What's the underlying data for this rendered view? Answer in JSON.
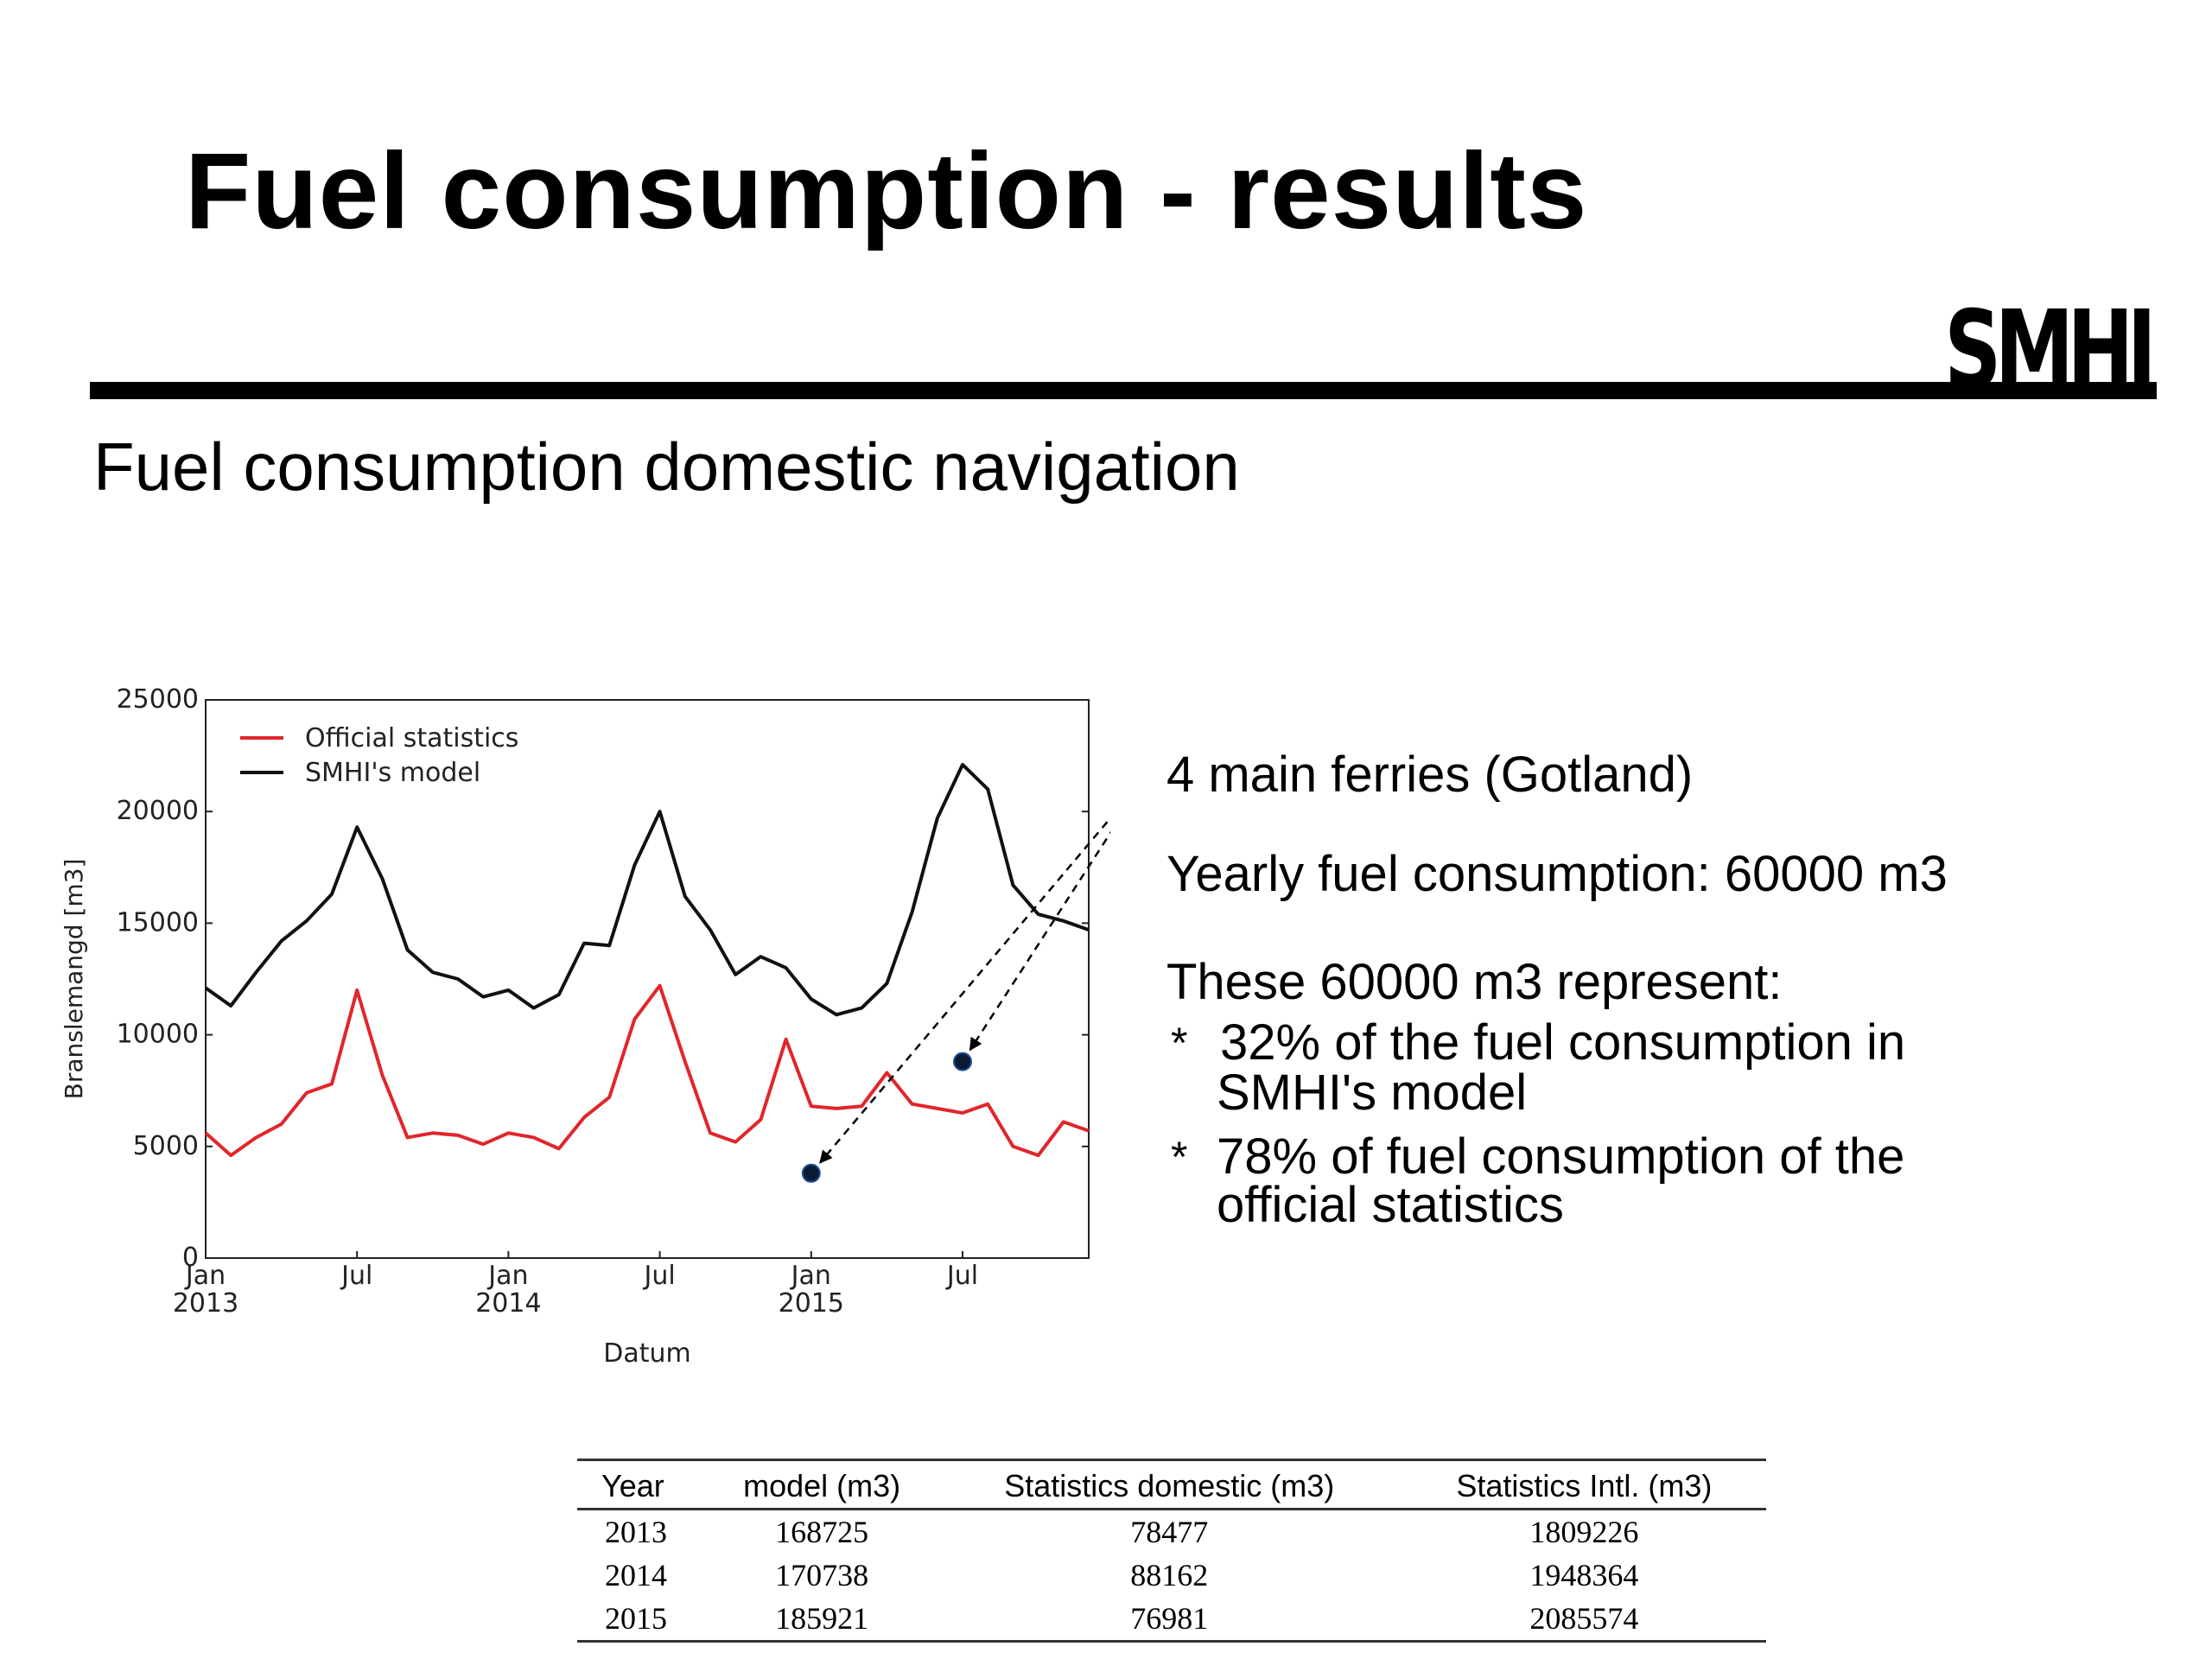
{
  "slide": {
    "title": "Fuel consumption - results",
    "logo": "SMHI",
    "subtitle": "Fuel consumption domestic navigation"
  },
  "annotations": {
    "ferries": "4 main ferries (Gotland)",
    "yearly": "Yearly fuel consumption: 60000 m3",
    "represent": "These 60000 m3 represent:",
    "bullet1_marker": "*",
    "bullet1_line1": "32% of the fuel consumption in",
    "bullet1_line2": "SMHI's model",
    "bullet2_marker": "*",
    "bullet2_line1": "78% of fuel consumption of the",
    "bullet2_line2": "official statistics"
  },
  "table": {
    "headers": [
      "Year",
      "model (m3)",
      "Statistics domestic (m3)",
      "Statistics Intl. (m3)"
    ],
    "rows": [
      [
        "2013",
        "168725",
        "78477",
        "1809226"
      ],
      [
        "2014",
        "170738",
        "88162",
        "1948364"
      ],
      [
        "2015",
        "185921",
        "76981",
        "2085574"
      ]
    ]
  },
  "chart_data": {
    "type": "line",
    "xlabel": "Datum",
    "ylabel": "Branslemangd [m3]",
    "ylim": [
      0,
      25000
    ],
    "yticks": [
      0,
      5000,
      10000,
      15000,
      20000,
      25000
    ],
    "xlim": [
      "2013-01",
      "2015-12"
    ],
    "xticks": [
      {
        "x": "2013-01",
        "line1": "Jan",
        "line2": "2013"
      },
      {
        "x": "2013-07",
        "line1": "Jul",
        "line2": ""
      },
      {
        "x": "2014-01",
        "line1": "Jan",
        "line2": "2014"
      },
      {
        "x": "2014-07",
        "line1": "Jul",
        "line2": ""
      },
      {
        "x": "2015-01",
        "line1": "Jan",
        "line2": "2015"
      },
      {
        "x": "2015-07",
        "line1": "Jul",
        "line2": ""
      }
    ],
    "legend_position": "top-left",
    "grid": false,
    "x": [
      "2013-01",
      "2013-02",
      "2013-03",
      "2013-04",
      "2013-05",
      "2013-06",
      "2013-07",
      "2013-08",
      "2013-09",
      "2013-10",
      "2013-11",
      "2013-12",
      "2014-01",
      "2014-02",
      "2014-03",
      "2014-04",
      "2014-05",
      "2014-06",
      "2014-07",
      "2014-08",
      "2014-09",
      "2014-10",
      "2014-11",
      "2014-12",
      "2015-01",
      "2015-02",
      "2015-03",
      "2015-04",
      "2015-05",
      "2015-06",
      "2015-07",
      "2015-08",
      "2015-09",
      "2015-10",
      "2015-11",
      "2015-12"
    ],
    "series": [
      {
        "name": "Official statistics",
        "color": "#e0262b",
        "values": [
          5600,
          4600,
          5400,
          6000,
          7400,
          7800,
          12000,
          8200,
          5400,
          5600,
          5500,
          5100,
          5600,
          5400,
          4900,
          6300,
          7200,
          10700,
          12200,
          8800,
          5600,
          5200,
          6200,
          9800,
          6800,
          6700,
          6800,
          8300,
          6900,
          6700,
          6500,
          6900,
          5000,
          4600,
          6100,
          5700
        ]
      },
      {
        "name": "SMHI's model",
        "color": "#111111",
        "values": [
          12100,
          11300,
          12800,
          14200,
          15100,
          16300,
          19300,
          17000,
          13800,
          12800,
          12500,
          11700,
          12000,
          11200,
          11800,
          14100,
          14000,
          17600,
          20000,
          16200,
          14700,
          12700,
          13500,
          13000,
          11600,
          10900,
          11200,
          12300,
          15500,
          19700,
          22100,
          21000,
          16700,
          15400,
          15100,
          14700
        ]
      }
    ],
    "points": [
      {
        "x": "2015-01",
        "y": 3800
      },
      {
        "x": "2015-07",
        "y": 8800
      }
    ]
  }
}
